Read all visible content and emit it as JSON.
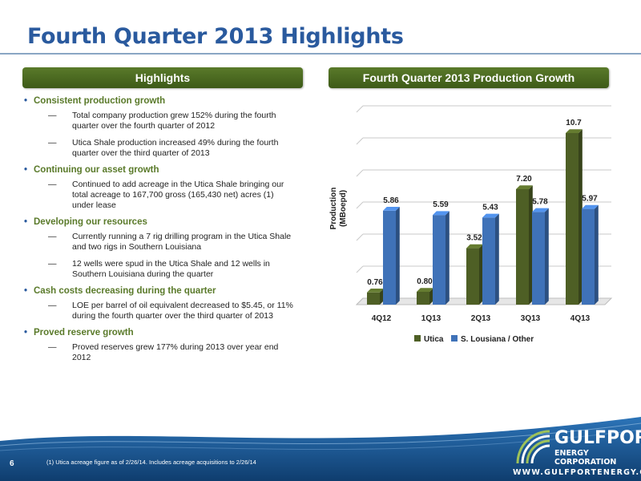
{
  "page_title": "Fourth Quarter 2013 Highlights",
  "left_panel": {
    "header": "Highlights",
    "groups": [
      {
        "head": "Consistent production growth",
        "items": [
          "Total company production grew 152% during the fourth quarter over the fourth quarter of 2012",
          "Utica Shale production increased 49% during the fourth quarter over the third quarter of 2013"
        ]
      },
      {
        "head": "Continuing our asset growth",
        "items": [
          "Continued to add acreage in the Utica Shale bringing our total acreage to 167,700 gross (165,430 net) acres (1) under lease"
        ]
      },
      {
        "head": "Developing our resources",
        "items": [
          "Currently running a 7 rig drilling program in the Utica Shale and two rigs in Southern Louisiana",
          "12 wells were spud in the Utica Shale and 12 wells in Southern Louisiana during the quarter"
        ]
      },
      {
        "head": "Cash costs decreasing during the quarter",
        "items": [
          "LOE per barrel of oil equivalent decreased to $5.45, or 11% during the fourth quarter over the third quarter of 2013"
        ]
      },
      {
        "head": "Proved reserve growth",
        "items": [
          "Proved reserves grew 177% during 2013 over year end 2012"
        ]
      }
    ],
    "dash": "—"
  },
  "right_panel": {
    "header": "Fourth Quarter 2013 Production Growth"
  },
  "chart_data": {
    "type": "bar",
    "categories": [
      "4Q12",
      "1Q13",
      "2Q13",
      "3Q13",
      "4Q13"
    ],
    "series": [
      {
        "name": "Utica",
        "values": [
          0.76,
          0.8,
          3.52,
          7.2,
          10.7
        ],
        "labels": [
          "0.76",
          "0.80",
          "3.52",
          "7.20",
          "10.7"
        ],
        "color": "#4e5f25"
      },
      {
        "name": "S. Lousiana / Other",
        "values": [
          5.86,
          5.59,
          5.43,
          5.78,
          5.97
        ],
        "labels": [
          "5.86",
          "5.59",
          "5.43",
          "5.78",
          "5.97"
        ],
        "color": "#3f72b8"
      }
    ],
    "ylabel": "Production\n(MBoepd)",
    "ylim": [
      0,
      12
    ],
    "grid": true,
    "legend": "bottom"
  },
  "footer": {
    "page_number": "6",
    "footnote": "(1) Utica acreage figure as of 2/26/14. Includes acreage acquisitions to 2/26/14",
    "logo_name": "GULFPORT",
    "logo_sub": "ENERGY CORPORATION",
    "logo_url": "WWW.GULFPORTENERGY.COM"
  },
  "colors": {
    "title_blue": "#2a5a9e",
    "header_green": "#4a6a22",
    "footer_blue": "#1d5a94"
  }
}
